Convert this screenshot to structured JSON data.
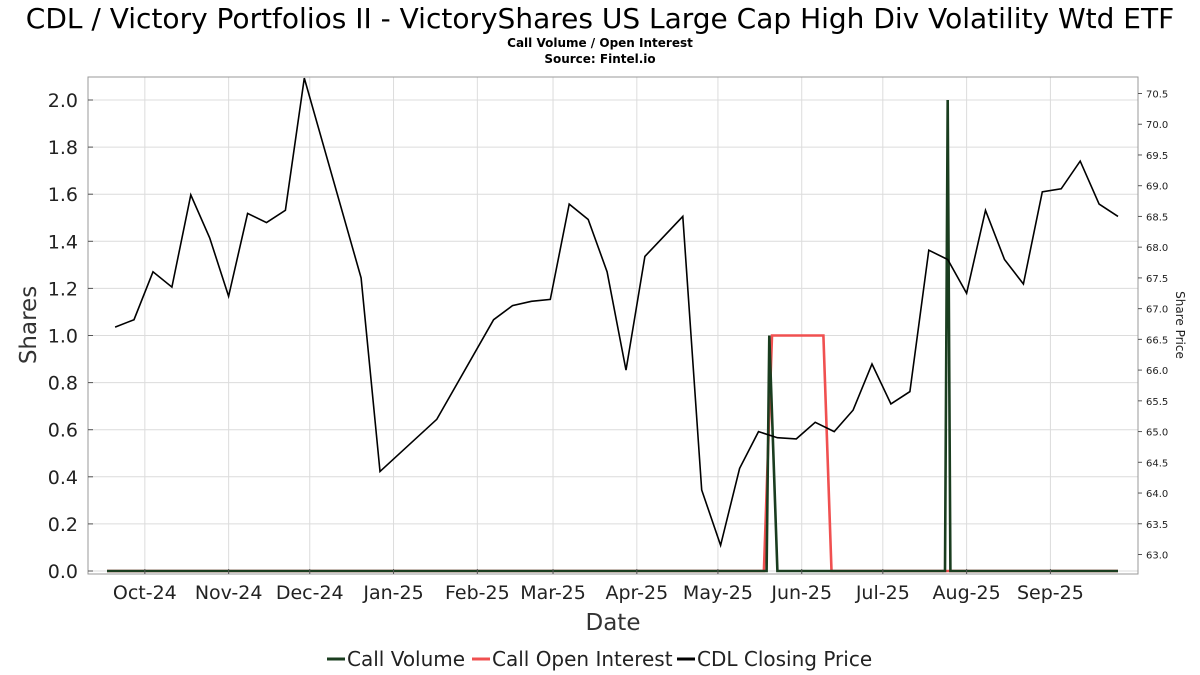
{
  "header": {
    "title": "CDL / Victory Portfolios II - VictoryShares US Large Cap High Div Volatility Wtd ETF",
    "subtitle": "Call Volume / Open Interest",
    "source": "Source: Fintel.io"
  },
  "chart_data": {
    "type": "line",
    "xlabel": "Date",
    "ylabel": "Shares",
    "y2label": "Share Price",
    "x_ticks": [
      "Oct-24",
      "Nov-24",
      "Dec-24",
      "Jan-25",
      "Feb-25",
      "Mar-25",
      "Apr-25",
      "May-25",
      "Jun-25",
      "Jul-25",
      "Aug-25",
      "Sep-25"
    ],
    "x_range": [
      "2024-09-17",
      "2025-09-26"
    ],
    "ylim": [
      0,
      2.0
    ],
    "y_ticks": [
      "0.0",
      "0.2",
      "0.4",
      "0.6",
      "0.8",
      "1.0",
      "1.2",
      "1.4",
      "1.6",
      "1.8",
      "2.0"
    ],
    "y2lim": [
      62.75,
      70.75
    ],
    "y2_ticks": [
      "63.0",
      "63.5",
      "64.0",
      "64.5",
      "65.0",
      "65.5",
      "66.0",
      "66.5",
      "67.0",
      "67.5",
      "68.0",
      "68.5",
      "69.0",
      "69.5",
      "70.0",
      "70.5"
    ],
    "grid": true,
    "legend_position": "bottom",
    "series": [
      {
        "name": "Call Volume",
        "axis": "left",
        "color": "#1a3d1f",
        "points": [
          [
            "2024-09-17",
            0
          ],
          [
            "2025-05-19",
            0
          ],
          [
            "2025-05-20",
            1.0
          ],
          [
            "2025-05-23",
            0
          ],
          [
            "2025-07-24",
            0
          ],
          [
            "2025-07-25",
            2.0
          ],
          [
            "2025-07-26",
            0
          ],
          [
            "2025-09-26",
            0
          ]
        ]
      },
      {
        "name": "Call Open Interest",
        "axis": "left",
        "color": "#f05050",
        "points": [
          [
            "2024-09-17",
            0
          ],
          [
            "2025-05-18",
            0
          ],
          [
            "2025-05-21",
            1.0
          ],
          [
            "2025-06-09",
            1.0
          ],
          [
            "2025-06-12",
            0
          ],
          [
            "2025-09-26",
            0
          ]
        ]
      },
      {
        "name": "CDL Closing Price",
        "axis": "right",
        "color": "#000000",
        "points": [
          [
            "2024-09-20",
            66.7
          ],
          [
            "2024-09-27",
            66.82
          ],
          [
            "2024-10-04",
            67.6
          ],
          [
            "2024-10-11",
            67.35
          ],
          [
            "2024-10-18",
            68.85
          ],
          [
            "2024-10-25",
            68.15
          ],
          [
            "2024-11-01",
            67.2
          ],
          [
            "2024-11-08",
            68.55
          ],
          [
            "2024-11-15",
            68.4
          ],
          [
            "2024-11-22",
            68.6
          ],
          [
            "2024-11-29",
            70.75
          ],
          [
            "2024-12-20",
            67.5
          ],
          [
            "2024-12-27",
            64.35
          ],
          [
            "2025-01-17",
            65.2
          ],
          [
            "2025-02-07",
            66.82
          ],
          [
            "2025-02-14",
            67.05
          ],
          [
            "2025-02-21",
            67.12
          ],
          [
            "2025-02-28",
            67.15
          ],
          [
            "2025-03-07",
            68.7
          ],
          [
            "2025-03-14",
            68.45
          ],
          [
            "2025-03-21",
            67.6
          ],
          [
            "2025-03-28",
            66.0
          ],
          [
            "2025-04-04",
            67.85
          ],
          [
            "2025-04-18",
            68.5
          ],
          [
            "2025-04-25",
            64.05
          ],
          [
            "2025-05-02",
            63.15
          ],
          [
            "2025-05-09",
            64.4
          ],
          [
            "2025-05-16",
            65.0
          ],
          [
            "2025-05-23",
            64.9
          ],
          [
            "2025-05-30",
            64.88
          ],
          [
            "2025-06-06",
            65.15
          ],
          [
            "2025-06-13",
            65.0
          ],
          [
            "2025-06-20",
            65.35
          ],
          [
            "2025-06-27",
            66.1
          ],
          [
            "2025-07-04",
            65.45
          ],
          [
            "2025-07-11",
            65.65
          ],
          [
            "2025-07-18",
            67.95
          ],
          [
            "2025-07-25",
            67.8
          ],
          [
            "2025-08-01",
            67.25
          ],
          [
            "2025-08-08",
            68.6
          ],
          [
            "2025-08-15",
            67.8
          ],
          [
            "2025-08-22",
            67.4
          ],
          [
            "2025-08-29",
            68.9
          ],
          [
            "2025-09-05",
            68.95
          ],
          [
            "2025-09-12",
            69.4
          ],
          [
            "2025-09-19",
            68.7
          ],
          [
            "2025-09-26",
            68.5
          ]
        ]
      }
    ]
  }
}
